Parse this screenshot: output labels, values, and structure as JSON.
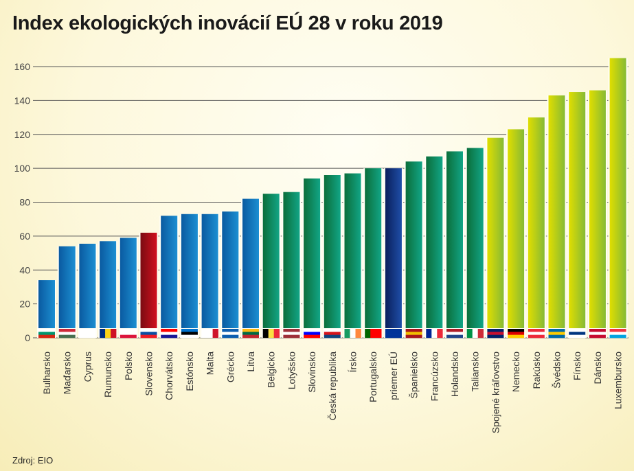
{
  "title": "Index ekologických inovácií EÚ 28 v roku 2019",
  "source": "Zdroj: EIO",
  "colors": {
    "blue": [
      "#0a5aa0",
      "#1c8fd2"
    ],
    "red": [
      "#7a0c12",
      "#d1101e"
    ],
    "green": [
      "#0b6e3a",
      "#12a586"
    ],
    "navy": [
      "#0a1f5c",
      "#1f4fa8"
    ],
    "lime": [
      "#e0de00",
      "#86ba35"
    ]
  },
  "chart_data": {
    "type": "bar",
    "title": "Index ekologických inovácií EÚ 28 v roku 2019",
    "xlabel": "",
    "ylabel": "",
    "ylim": [
      0,
      165
    ],
    "yticks": [
      0,
      20,
      40,
      60,
      80,
      100,
      120,
      140,
      160
    ],
    "grid": true,
    "categories": [
      "Bulharsko",
      "Maďarsko",
      "Cyprus",
      "Rumunsko",
      "Polsko",
      "Slovensko",
      "Chorvátsko",
      "Estónsko",
      "Malta",
      "Grécko",
      "Litva",
      "Belgicko",
      "Lotyšsko",
      "Slovinsko",
      "Česká republika",
      "Írsko",
      "Portugalsko",
      "priemer EÚ",
      "Španielsko",
      "Francúzsko",
      "Holandsko",
      "Taliansko",
      "Spojené kráľovstvo",
      "Nemecko",
      "Rakúsko",
      "Švédsko",
      "Fínsko",
      "Dánsko",
      "Luxembursko"
    ],
    "values": [
      34,
      54,
      55.5,
      57,
      59,
      62,
      72,
      73,
      73,
      74.5,
      82,
      85,
      86,
      94,
      96,
      97,
      100,
      100,
      104,
      107,
      110,
      112,
      118,
      123,
      130,
      143,
      145,
      146,
      165
    ],
    "groups": [
      "blue",
      "blue",
      "blue",
      "blue",
      "blue",
      "red",
      "blue",
      "blue",
      "blue",
      "blue",
      "blue",
      "green",
      "green",
      "green",
      "green",
      "green",
      "green",
      "navy",
      "green",
      "green",
      "green",
      "green",
      "lime",
      "lime",
      "lime",
      "lime",
      "lime",
      "lime",
      "lime"
    ],
    "flags": [
      {
        "dir": "h",
        "c": [
          "#ffffff",
          "#00966e",
          "#d62612"
        ]
      },
      {
        "dir": "h",
        "c": [
          "#ce2939",
          "#ffffff",
          "#477050"
        ]
      },
      {
        "dir": "h",
        "c": [
          "#ffffff",
          "#ffffff",
          "#ffffff"
        ]
      },
      {
        "dir": "v",
        "c": [
          "#002b7f",
          "#fcd116",
          "#ce1126"
        ]
      },
      {
        "dir": "h",
        "c": [
          "#ffffff",
          "#ffffff",
          "#dc143c"
        ]
      },
      {
        "dir": "h",
        "c": [
          "#ffffff",
          "#0b4ea2",
          "#ee1c25"
        ]
      },
      {
        "dir": "h",
        "c": [
          "#ff0000",
          "#ffffff",
          "#171796"
        ]
      },
      {
        "dir": "h",
        "c": [
          "#0072ce",
          "#000000",
          "#ffffff"
        ]
      },
      {
        "dir": "v",
        "c": [
          "#ffffff",
          "#ffffff",
          "#cf142b"
        ]
      },
      {
        "dir": "h",
        "c": [
          "#0d5eaf",
          "#ffffff",
          "#0d5eaf"
        ]
      },
      {
        "dir": "h",
        "c": [
          "#fdb913",
          "#006a44",
          "#c1272d"
        ]
      },
      {
        "dir": "v",
        "c": [
          "#000000",
          "#fae042",
          "#ed2939"
        ]
      },
      {
        "dir": "h",
        "c": [
          "#9e3039",
          "#ffffff",
          "#9e3039"
        ]
      },
      {
        "dir": "h",
        "c": [
          "#ffffff",
          "#0000ff",
          "#ff0000"
        ]
      },
      {
        "dir": "h",
        "c": [
          "#ffffff",
          "#d7141a",
          "#11457e"
        ]
      },
      {
        "dir": "v",
        "c": [
          "#169b62",
          "#ffffff",
          "#ff883e"
        ]
      },
      {
        "dir": "v",
        "c": [
          "#006600",
          "#ff0000",
          "#ff0000"
        ]
      },
      {
        "dir": "h",
        "c": [
          "#003399",
          "#003399",
          "#003399"
        ]
      },
      {
        "dir": "h",
        "c": [
          "#aa151b",
          "#f1bf00",
          "#aa151b"
        ]
      },
      {
        "dir": "v",
        "c": [
          "#002395",
          "#ffffff",
          "#ed2939"
        ]
      },
      {
        "dir": "h",
        "c": [
          "#ae1c28",
          "#ffffff",
          "#21468b"
        ]
      },
      {
        "dir": "v",
        "c": [
          "#009246",
          "#ffffff",
          "#ce2b37"
        ]
      },
      {
        "dir": "h",
        "c": [
          "#012169",
          "#c8102e",
          "#012169"
        ]
      },
      {
        "dir": "h",
        "c": [
          "#000000",
          "#dd0000",
          "#ffce00"
        ]
      },
      {
        "dir": "h",
        "c": [
          "#ed2939",
          "#ffffff",
          "#ed2939"
        ]
      },
      {
        "dir": "h",
        "c": [
          "#006aa7",
          "#fecc00",
          "#006aa7"
        ]
      },
      {
        "dir": "h",
        "c": [
          "#ffffff",
          "#003580",
          "#ffffff"
        ]
      },
      {
        "dir": "h",
        "c": [
          "#c60c30",
          "#ffffff",
          "#c60c30"
        ]
      },
      {
        "dir": "h",
        "c": [
          "#ef3340",
          "#ffffff",
          "#00a3e0"
        ]
      }
    ]
  }
}
